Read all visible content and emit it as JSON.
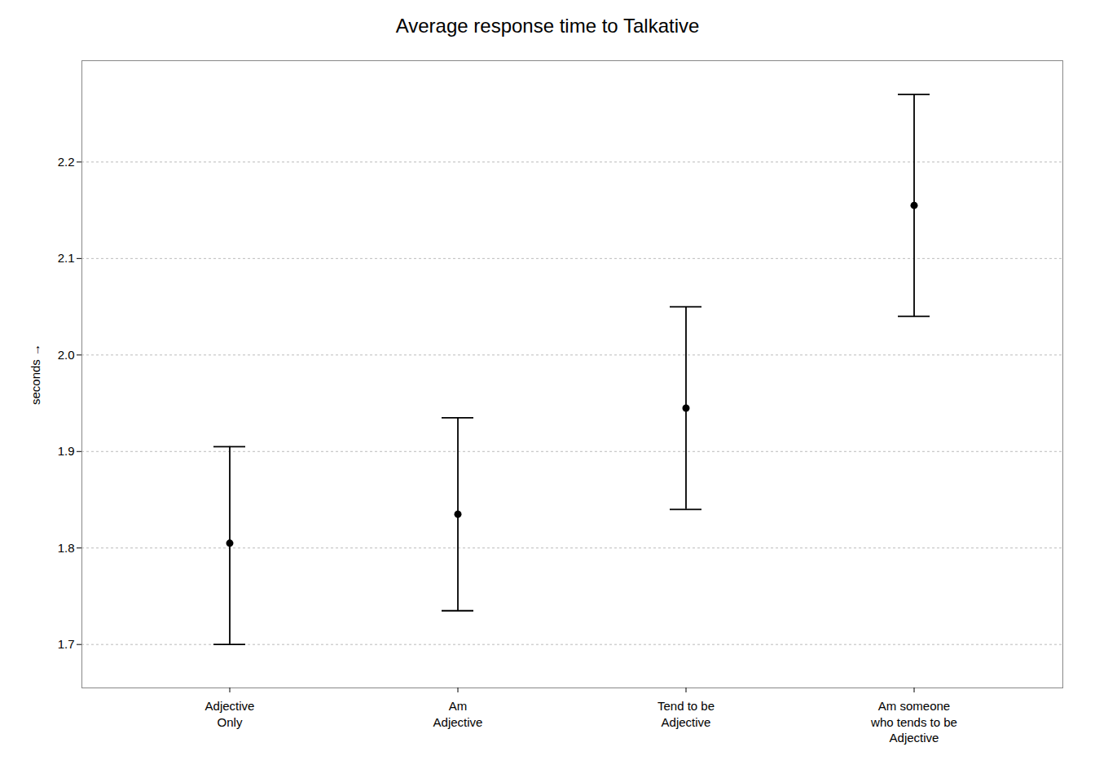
{
  "chart_data": {
    "type": "dot",
    "title": "Average response time to Talkative",
    "ylabel": "seconds",
    "categories": [
      "Adjective\nOnly",
      "Am\nAdjective",
      "Tend to be\nAdjective",
      "Am someone\nwho tends to be\nAdjective"
    ],
    "values": [
      1.805,
      1.835,
      1.945,
      2.155
    ],
    "ci_lower": [
      1.7,
      1.735,
      1.84,
      2.04
    ],
    "ci_upper": [
      1.905,
      1.935,
      2.05,
      2.27
    ],
    "ylim": [
      1.655,
      2.305
    ],
    "yticks": [
      1.7,
      1.8,
      1.9,
      {
        "value": 2.0,
        "label": "2.0"
      },
      2.1,
      2.2
    ],
    "color": "#000000",
    "grid": true
  }
}
